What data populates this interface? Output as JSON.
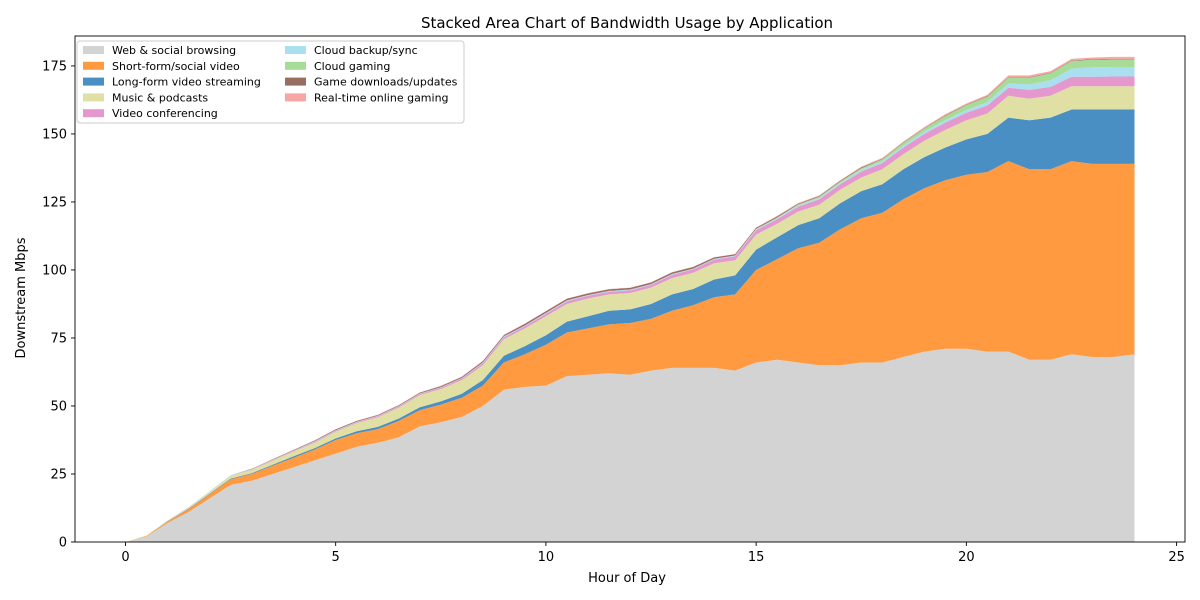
{
  "chart_data": {
    "type": "area",
    "stacked": true,
    "title": "Stacked Area Chart of Bandwidth Usage by Application",
    "xlabel": "Hour of Day",
    "ylabel": "Downstream Mbps",
    "xlim": [
      -1.2,
      25.2
    ],
    "ylim": [
      0,
      186
    ],
    "xticks": [
      0,
      5,
      10,
      15,
      20,
      25
    ],
    "yticks": [
      0,
      25,
      50,
      75,
      100,
      125,
      150,
      175
    ],
    "legend_position": "upper-left",
    "legend_columns": 2,
    "x": [
      0,
      0.5,
      1,
      1.5,
      2,
      2.5,
      3,
      3.5,
      4,
      4.5,
      5,
      5.5,
      6,
      6.5,
      7,
      7.5,
      8,
      8.5,
      9,
      9.5,
      10,
      10.5,
      11,
      11.5,
      12,
      12.5,
      13,
      13.5,
      14,
      14.5,
      15,
      15.5,
      16,
      16.5,
      17,
      17.5,
      18,
      18.5,
      19,
      19.5,
      20,
      20.5,
      21,
      21.5,
      22,
      22.5,
      23,
      23.5,
      24
    ],
    "series": [
      {
        "name": "Web & social browsing",
        "color": "#d3d3d3",
        "values": [
          0,
          2,
          7,
          11,
          16,
          21,
          22.5,
          25,
          27.5,
          30,
          32.5,
          35,
          36.5,
          38.5,
          42.5,
          44,
          46,
          50,
          56,
          57,
          57.5,
          61,
          61.5,
          62,
          61.5,
          63,
          64,
          64,
          64,
          63,
          66,
          67,
          66,
          65,
          65,
          66,
          66,
          68,
          70,
          71,
          71,
          70,
          70,
          67,
          67,
          69,
          68,
          68,
          69
        ]
      },
      {
        "name": "Short-form/social video",
        "color": "#ff9a40",
        "values": [
          0,
          0.2,
          0.5,
          1,
          1.5,
          2,
          2.5,
          3,
          3.5,
          4,
          5,
          5,
          5,
          6,
          6,
          6.5,
          7,
          7.5,
          10,
          12,
          15,
          16,
          17,
          18,
          19,
          19,
          21,
          23,
          26,
          28,
          34,
          37,
          42,
          45,
          50,
          53,
          55,
          58,
          60,
          62,
          64,
          66,
          70,
          70,
          70,
          71,
          71,
          71,
          70
        ]
      },
      {
        "name": "Long-form video streaming",
        "color": "#4a8fc3",
        "values": [
          0,
          0,
          0.1,
          0.2,
          0.2,
          0.3,
          0.3,
          0.4,
          0.5,
          0.5,
          0.6,
          0.7,
          0.8,
          0.9,
          1,
          1.2,
          1.5,
          2,
          2.5,
          3,
          3.5,
          4,
          4.5,
          5,
          5,
          5.5,
          6,
          6,
          6.5,
          7,
          7.5,
          8,
          8.5,
          9,
          9.5,
          10,
          10.5,
          11,
          11.5,
          12,
          13,
          14,
          16,
          18,
          19,
          19,
          20,
          20,
          20
        ]
      },
      {
        "name": "Music & podcasts",
        "color": "#e1e0a4",
        "values": [
          0,
          0.2,
          0.3,
          0.5,
          0.7,
          1,
          1.2,
          1.5,
          1.8,
          2,
          2.5,
          3,
          3.5,
          4,
          4.5,
          4.5,
          5,
          5.5,
          6,
          6.5,
          7,
          6.5,
          6.5,
          6,
          6,
          6,
          6,
          6,
          6,
          5.5,
          5.5,
          5,
          5,
          5,
          5,
          5,
          5.5,
          5.5,
          6,
          6.5,
          7,
          7.5,
          8,
          8,
          8,
          8.5,
          8.5,
          8.5,
          8.5
        ]
      },
      {
        "name": "Video conferencing",
        "color": "#e598cd",
        "values": [
          0,
          0,
          0,
          0.1,
          0.1,
          0.1,
          0.2,
          0.2,
          0.2,
          0.3,
          0.3,
          0.3,
          0.4,
          0.4,
          0.4,
          0.5,
          0.6,
          0.7,
          0.8,
          0.8,
          0.9,
          1,
          1,
          1,
          1,
          1,
          1.2,
          1.2,
          1.3,
          1.5,
          1.6,
          1.7,
          1.8,
          2,
          2,
          2.2,
          2.3,
          2.5,
          2.5,
          2.7,
          2.8,
          3,
          3,
          3.2,
          3.3,
          3.5,
          3.5,
          3.6,
          3.6
        ]
      },
      {
        "name": "Cloud backup/sync",
        "color": "#a9dfee",
        "values": [
          0,
          0,
          0,
          0,
          0.1,
          0.1,
          0.1,
          0.1,
          0.1,
          0.2,
          0.2,
          0.2,
          0.2,
          0.2,
          0.2,
          0.2,
          0.2,
          0.3,
          0.3,
          0.3,
          0.3,
          0.3,
          0.3,
          0.3,
          0.3,
          0.3,
          0.3,
          0.3,
          0.3,
          0.3,
          0.4,
          0.4,
          0.5,
          0.5,
          0.5,
          0.6,
          0.6,
          0.7,
          0.8,
          0.9,
          1,
          1.2,
          1.5,
          2,
          2.5,
          3,
          3.5,
          3.5,
          3.5
        ]
      },
      {
        "name": "Cloud gaming",
        "color": "#a6dc98",
        "values": [
          0,
          0,
          0,
          0,
          0,
          0,
          0,
          0,
          0,
          0,
          0,
          0,
          0,
          0,
          0,
          0,
          0,
          0,
          0,
          0,
          0,
          0,
          0,
          0,
          0,
          0,
          0,
          0,
          0,
          0,
          0.1,
          0.2,
          0.3,
          0.4,
          0.5,
          0.6,
          0.8,
          1,
          1.2,
          1.5,
          1.8,
          2,
          2.2,
          2.5,
          2.5,
          2.8,
          2.8,
          2.8,
          2.8
        ]
      },
      {
        "name": "Game downloads/updates",
        "color": "#9a6d62",
        "values": [
          0,
          0,
          0,
          0,
          0,
          0,
          0.1,
          0.2,
          0.2,
          0.3,
          0.3,
          0.3,
          0.3,
          0.3,
          0.3,
          0.4,
          0.4,
          0.5,
          0.5,
          0.6,
          0.6,
          0.6,
          0.6,
          0.6,
          0.6,
          0.6,
          0.6,
          0.6,
          0.5,
          0.5,
          0.4,
          0.4,
          0.3,
          0.3,
          0.3,
          0.3,
          0.2,
          0.2,
          0.2,
          0.2,
          0.2,
          0.2,
          0.2,
          0.2,
          0.2,
          0.2,
          0.2,
          0.2,
          0.2
        ]
      },
      {
        "name": "Real-time online gaming",
        "color": "#f7a6a3",
        "values": [
          0,
          0,
          0,
          0,
          0,
          0,
          0,
          0,
          0.1,
          0.1,
          0.1,
          0.1,
          0.1,
          0.1,
          0.1,
          0.1,
          0.1,
          0.1,
          0.1,
          0.1,
          0.1,
          0.1,
          0.1,
          0.1,
          0.1,
          0.1,
          0.1,
          0.1,
          0.1,
          0.1,
          0.1,
          0.2,
          0.2,
          0.2,
          0.2,
          0.3,
          0.3,
          0.3,
          0.3,
          0.4,
          0.4,
          0.5,
          0.6,
          0.6,
          0.6,
          0.6,
          0.6,
          0.7,
          0.7
        ]
      }
    ]
  }
}
